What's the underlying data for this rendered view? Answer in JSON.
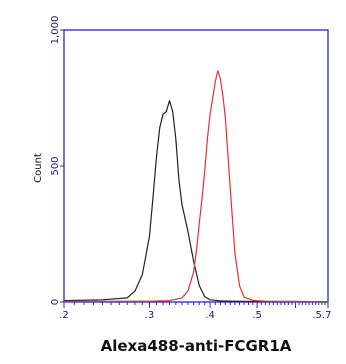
{
  "chart_data": {
    "type": "line",
    "xlabel": "Alexa488-anti-FCGR1A",
    "ylabel": "Count",
    "x_scale": "log",
    "xlim": [
      0.2,
      0.7
    ],
    "ylim": [
      0,
      1000
    ],
    "y_ticks": [
      "0",
      "500",
      "1,000"
    ],
    "x_ticks": [
      ".2",
      ".3",
      ".4",
      ".5",
      ".5.7"
    ],
    "grid": false,
    "legend": "none",
    "series": [
      {
        "color": "#222222",
        "x": [
          0.2,
          0.24,
          0.27,
          0.28,
          0.29,
          0.3,
          0.305,
          0.31,
          0.315,
          0.32,
          0.325,
          0.33,
          0.335,
          0.34,
          0.345,
          0.35,
          0.36,
          0.37,
          0.38,
          0.39,
          0.4,
          0.42,
          0.45,
          0.5,
          0.6,
          0.7
        ],
        "y": [
          5,
          8,
          15,
          40,
          100,
          240,
          380,
          530,
          640,
          690,
          700,
          740,
          700,
          600,
          450,
          360,
          260,
          150,
          60,
          20,
          8,
          4,
          3,
          2,
          2,
          1
        ]
      },
      {
        "color": "#e83030",
        "x": [
          0.2,
          0.3,
          0.33,
          0.35,
          0.36,
          0.37,
          0.375,
          0.38,
          0.385,
          0.39,
          0.395,
          0.4,
          0.405,
          0.41,
          0.415,
          0.42,
          0.425,
          0.43,
          0.44,
          0.45,
          0.46,
          0.47,
          0.49,
          0.52,
          0.6,
          0.7
        ],
        "y": [
          2,
          3,
          5,
          15,
          40,
          110,
          190,
          290,
          380,
          480,
          600,
          690,
          750,
          810,
          850,
          820,
          760,
          680,
          420,
          180,
          60,
          18,
          6,
          3,
          2,
          1
        ]
      }
    ]
  }
}
